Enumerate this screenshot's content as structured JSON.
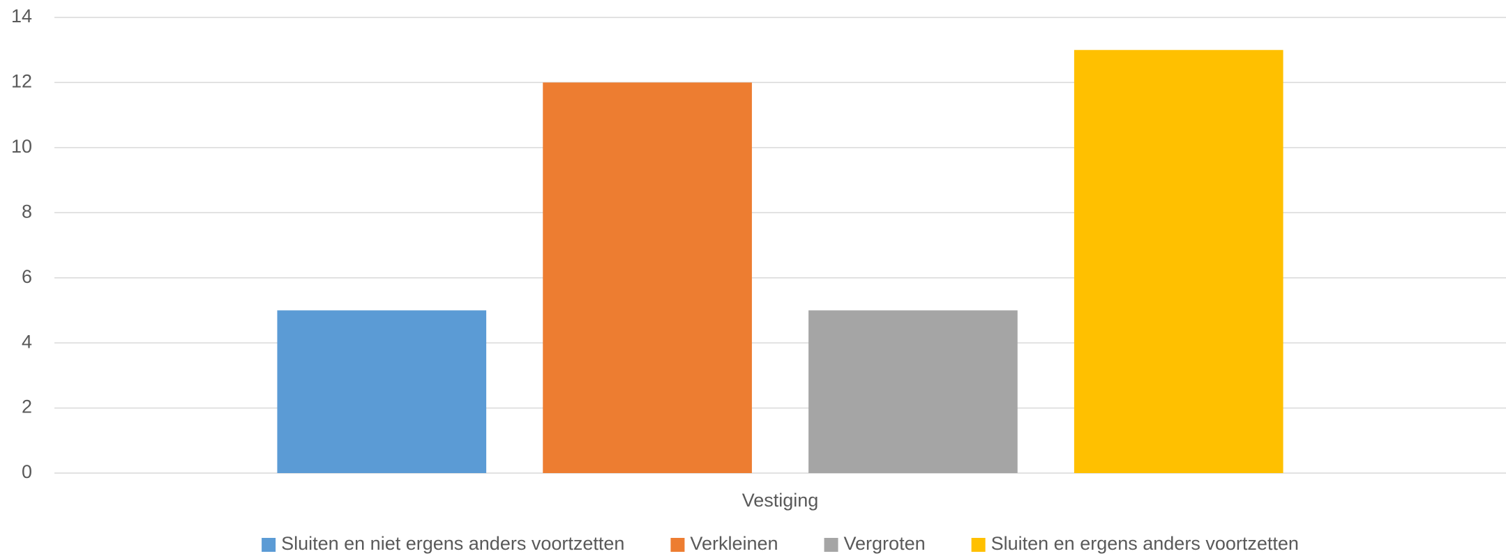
{
  "chart_data": {
    "type": "bar",
    "categories": [
      "Vestiging"
    ],
    "series": [
      {
        "name": "Sluiten en niet ergens anders voortzetten",
        "color": "#5b9bd5",
        "values": [
          5
        ]
      },
      {
        "name": "Verkleinen",
        "color": "#ed7d31",
        "values": [
          12
        ]
      },
      {
        "name": "Vergroten",
        "color": "#a5a5a5",
        "values": [
          5
        ]
      },
      {
        "name": "Sluiten en ergens anders voortzetten",
        "color": "#ffc000",
        "values": [
          13
        ]
      }
    ],
    "ylim": [
      0,
      14
    ],
    "yticks": [
      0,
      2,
      4,
      6,
      8,
      10,
      12,
      14
    ],
    "grid": true,
    "legend": "bottom"
  }
}
